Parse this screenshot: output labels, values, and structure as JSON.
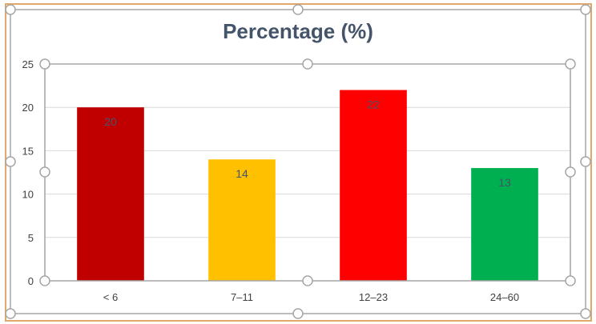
{
  "chart_data": {
    "type": "bar",
    "title": "Percentage (%)",
    "categories": [
      "< 6",
      "7–11",
      "12–23",
      "24–60"
    ],
    "values": [
      20,
      14,
      22,
      13
    ],
    "data_labels": [
      "20",
      "14",
      "22",
      "13"
    ],
    "bar_colors": [
      "#c00000",
      "#ffc000",
      "#ff0000",
      "#00b050"
    ],
    "ylim": [
      0,
      25
    ],
    "yticks": [
      0,
      5,
      10,
      15,
      20,
      25
    ],
    "grid": true,
    "legend": "none",
    "xlabel": "",
    "ylabel": ""
  },
  "colors": {
    "frame_accent": "#e2a86a",
    "plot_area_border": "#a6a6a6",
    "selection_handle": "#a6a6a6",
    "gridline": "#d9d9d9",
    "axis_text": "#404040",
    "data_label_text": "#44546a",
    "title_text": "#44546a"
  }
}
